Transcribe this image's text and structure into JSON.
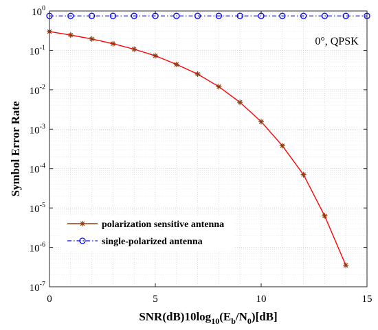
{
  "chart_data": {
    "type": "line",
    "yscale": "log",
    "xlabel_parts": [
      "SNR(dB)10log",
      "10",
      "(E",
      "b",
      "/N",
      "0",
      ")[dB]"
    ],
    "ylabel": "Symbol Error Rate",
    "annotation": "0°, QPSK",
    "xlim": [
      0,
      15
    ],
    "ylim": [
      1e-07,
      1
    ],
    "x_ticks": [
      "0",
      "5",
      "10",
      "15"
    ],
    "y_tick_exponents": [
      "0",
      "-1",
      "-2",
      "-3",
      "-4",
      "-5",
      "-6",
      "-7"
    ],
    "grid": true,
    "legend_position": "bottom-left",
    "series": [
      {
        "name": "polarization sensitive antenna",
        "color": "#ff0000",
        "marker": "asterisk",
        "marker_color": "#8b3a0f",
        "x": [
          0,
          1,
          2,
          3,
          4,
          5,
          6,
          7,
          8,
          9,
          10,
          11,
          12,
          13,
          14
        ],
        "y": [
          0.3,
          0.245,
          0.195,
          0.148,
          0.107,
          0.073,
          0.044,
          0.025,
          0.012,
          0.0048,
          0.00155,
          0.00038,
          7e-05,
          6.3e-06,
          3.5e-07
        ]
      },
      {
        "name": "single-polarized antenna",
        "color": "#0000ff",
        "marker": "circle",
        "x": [
          0,
          1,
          2,
          3,
          4,
          5,
          6,
          7,
          8,
          9,
          10,
          11,
          12,
          13,
          14,
          15
        ],
        "y": [
          0.75,
          0.75,
          0.75,
          0.75,
          0.75,
          0.75,
          0.75,
          0.75,
          0.75,
          0.75,
          0.75,
          0.75,
          0.75,
          0.75,
          0.75,
          0.75
        ]
      }
    ]
  }
}
